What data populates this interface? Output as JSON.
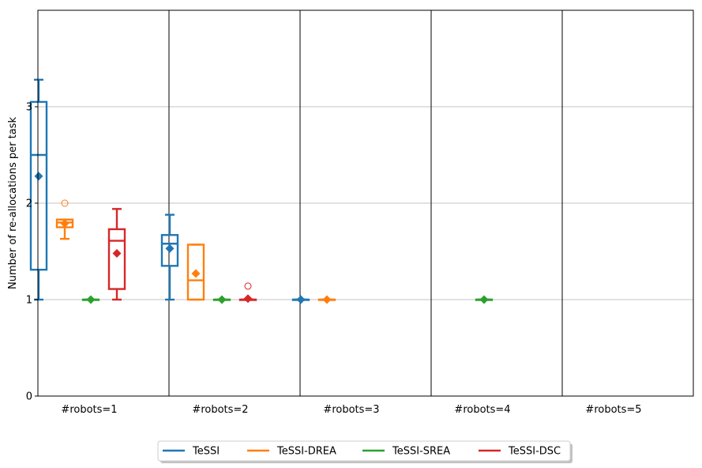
{
  "chart_data": {
    "type": "box",
    "title": "",
    "xlabel": "",
    "ylabel": "Number of re-allocations per task",
    "ylim": [
      0,
      4
    ],
    "yticks": [
      0,
      1,
      2,
      3
    ],
    "grid": "horizontal",
    "groups": [
      "#robots=1",
      "#robots=2",
      "#robots=3",
      "#robots=4",
      "#robots=5"
    ],
    "legend_position": "bottom-center",
    "series": [
      {
        "name": "TeSSI",
        "color": "#1f77b4",
        "boxes": [
          {
            "group": 0,
            "whisker_low": 1.0,
            "q1": 1.31,
            "median": 2.5,
            "q3": 3.05,
            "whisker_high": 3.28,
            "mean": 2.28,
            "outliers": []
          },
          {
            "group": 1,
            "whisker_low": 1.0,
            "q1": 1.35,
            "median": 1.58,
            "q3": 1.67,
            "whisker_high": 1.88,
            "mean": 1.53,
            "outliers": []
          },
          {
            "group": 2,
            "whisker_low": 1.0,
            "q1": 1.0,
            "median": 1.0,
            "q3": 1.0,
            "whisker_high": 1.0,
            "mean": 1.0,
            "outliers": []
          }
        ]
      },
      {
        "name": "TeSSI-DREA",
        "color": "#ff7f0e",
        "boxes": [
          {
            "group": 0,
            "whisker_low": 1.63,
            "q1": 1.75,
            "median": 1.8,
            "q3": 1.83,
            "whisker_high": 1.83,
            "mean": 1.79,
            "outliers": [
              2.0
            ]
          },
          {
            "group": 1,
            "whisker_low": 1.0,
            "q1": 1.0,
            "median": 1.2,
            "q3": 1.57,
            "whisker_high": 1.57,
            "mean": 1.27,
            "outliers": []
          },
          {
            "group": 2,
            "whisker_low": 1.0,
            "q1": 1.0,
            "median": 1.0,
            "q3": 1.0,
            "whisker_high": 1.0,
            "mean": 1.0,
            "outliers": []
          }
        ]
      },
      {
        "name": "TeSSI-SREA",
        "color": "#2ca02c",
        "boxes": [
          {
            "group": 0,
            "whisker_low": 1.0,
            "q1": 1.0,
            "median": 1.0,
            "q3": 1.0,
            "whisker_high": 1.0,
            "mean": 1.0,
            "outliers": []
          },
          {
            "group": 1,
            "whisker_low": 1.0,
            "q1": 1.0,
            "median": 1.0,
            "q3": 1.0,
            "whisker_high": 1.0,
            "mean": 1.0,
            "outliers": []
          },
          {
            "group": 3,
            "whisker_low": 1.0,
            "q1": 1.0,
            "median": 1.0,
            "q3": 1.0,
            "whisker_high": 1.0,
            "mean": 1.0,
            "outliers": []
          }
        ]
      },
      {
        "name": "TeSSI-DSC",
        "color": "#d62728",
        "boxes": [
          {
            "group": 0,
            "whisker_low": 1.0,
            "q1": 1.11,
            "median": 1.61,
            "q3": 1.73,
            "whisker_high": 1.94,
            "mean": 1.48,
            "outliers": []
          },
          {
            "group": 1,
            "whisker_low": 1.0,
            "q1": 1.0,
            "median": 1.0,
            "q3": 1.0,
            "whisker_high": 1.0,
            "mean": 1.01,
            "outliers": [
              1.14
            ]
          }
        ]
      }
    ]
  }
}
